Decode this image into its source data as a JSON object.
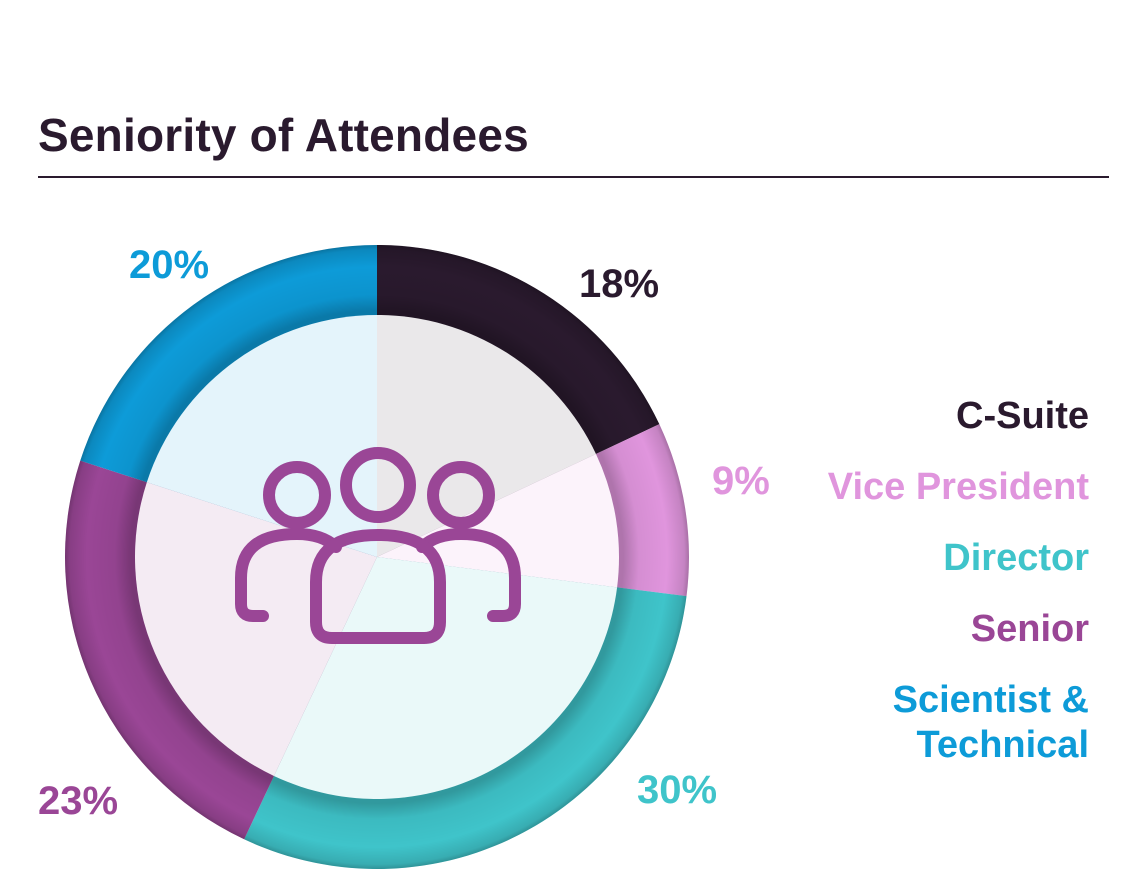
{
  "chart_data": {
    "type": "pie",
    "title": "Seniority of Attendees",
    "categories": [
      "C-Suite",
      "Vice President",
      "Director",
      "Senior",
      "Scientist & Technical"
    ],
    "values": [
      18,
      9,
      30,
      23,
      20
    ],
    "value_labels": [
      "18%",
      "9%",
      "30%",
      "23%",
      "20%"
    ],
    "unit": "%",
    "colors": [
      "#2a1a2e",
      "#e095dd",
      "#3fc4ca",
      "#9a4696",
      "#0d9bd8"
    ],
    "center_icon": "people-group-icon",
    "legend_position": "right"
  },
  "legend": {
    "c_suite": "C-Suite",
    "vice_president": "Vice President",
    "director": "Director",
    "senior": "Senior",
    "scientist_line1": "Scientist &",
    "scientist_line2": "Technical"
  }
}
